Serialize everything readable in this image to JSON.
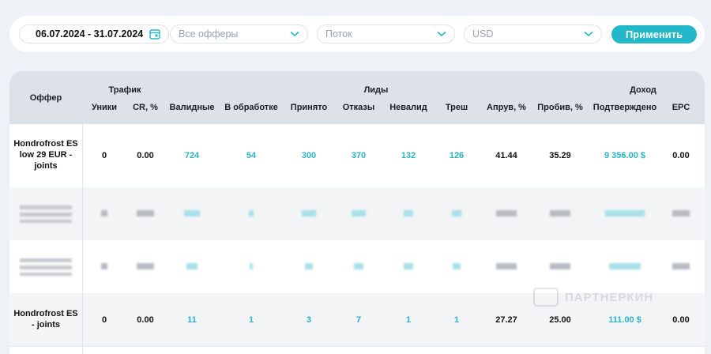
{
  "filters": {
    "date_range": "06.07.2024 - 31.07.2024",
    "offers_placeholder": "Все офферы",
    "stream_placeholder": "Поток",
    "currency": "USD",
    "apply_label": "Применить"
  },
  "table": {
    "group_headers": {
      "offer": "Оффер",
      "traffic": "Трафик",
      "leads": "Лиды",
      "income": "Доход"
    },
    "columns": [
      "Уники",
      "CR, %",
      "Валидные",
      "В обработке",
      "Принято",
      "Отказы",
      "Невалид",
      "Треш",
      "Апрув, %",
      "Пробив, %",
      "Подтверждено",
      "EPC"
    ],
    "rows": [
      {
        "offer": "Hondrofrost ES low 29 EUR - joints",
        "values": [
          "0",
          "0.00",
          "724",
          "54",
          "300",
          "370",
          "132",
          "126",
          "41.44",
          "35.29",
          "9 356.00 $",
          "0.00"
        ]
      },
      {
        "offer": "",
        "values": [
          "",
          "",
          "",
          "",
          "",
          "",
          "",
          "",
          "",
          "",
          "",
          ""
        ]
      },
      {
        "offer": "",
        "values": [
          "",
          "",
          "",
          "",
          "",
          "",
          "",
          "",
          "",
          "",
          "",
          ""
        ]
      },
      {
        "offer": "Hondrofrost ES - joints",
        "values": [
          "0",
          "0.00",
          "11",
          "1",
          "3",
          "7",
          "1",
          "1",
          "27.27",
          "25.00",
          "111.00 $",
          "0.00"
        ]
      }
    ]
  },
  "watermark": "ПАРТНЕРКИН",
  "colors": {
    "accent": "#22b8c9",
    "link": "#2ab3c7",
    "header_bg": "#dde2e8"
  }
}
